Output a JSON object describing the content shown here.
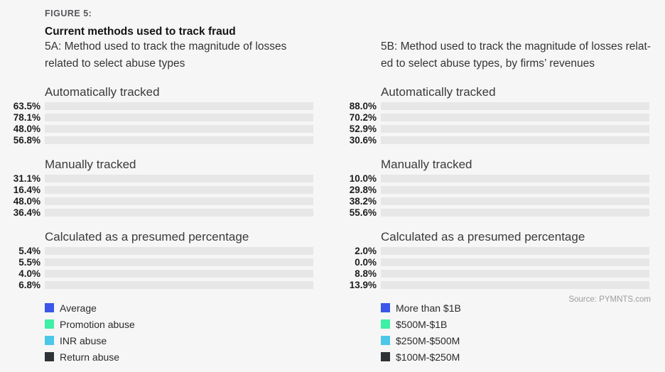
{
  "header": {
    "figure_label": "FIGURE 5:",
    "title": "Current methods used to track fraud",
    "subtitle_a_lines": [
      "5A: Method used to track the magnitude of losses",
      "related to select abuse types"
    ],
    "subtitle_b_lines": [
      "5B: Method used to track the magnitude of losses relat-",
      "ed to select abuse types, by firms’ revenues"
    ]
  },
  "source_note": "Source: PYMNTS.com",
  "colors": {
    "background": "#f6f6f6",
    "track": "#e7e7e7",
    "series": [
      "#3b56e8",
      "#3fefa4",
      "#4cc7e7",
      "#5a6069"
    ],
    "legend_swatches": [
      "#3b56e8",
      "#3fefa4",
      "#4cc7e7",
      "#2f3338"
    ],
    "value_label": "#1d1d1d",
    "group_title": "#3a3a3a"
  },
  "value_suffix": "%",
  "chart_data": [
    {
      "type": "bar",
      "orientation": "horizontal",
      "title": "5A: Method used to track the magnitude of losses related to select abuse types",
      "categories": [
        "Automatically tracked",
        "Manually tracked",
        "Calculated as a presumed percentage"
      ],
      "series": [
        {
          "name": "Average",
          "values": [
            63.5,
            31.1,
            5.4
          ]
        },
        {
          "name": "Promotion abuse",
          "values": [
            78.1,
            16.4,
            5.5
          ]
        },
        {
          "name": "INR abuse",
          "values": [
            48.0,
            48.0,
            4.0
          ]
        },
        {
          "name": "Return abuse",
          "values": [
            56.8,
            36.4,
            6.8
          ]
        }
      ],
      "xlim": [
        0,
        100
      ],
      "unit": "%",
      "value_labels": "left_of_bar",
      "legend_position": "bottom-left",
      "grid": false
    },
    {
      "type": "bar",
      "orientation": "horizontal",
      "title": "5B: Method used to track the magnitude of losses related to select abuse types, by firms’ revenues",
      "categories": [
        "Automatically tracked",
        "Manually tracked",
        "Calculated as a presumed percentage"
      ],
      "series": [
        {
          "name": "More than $1B",
          "values": [
            88.0,
            10.0,
            2.0
          ]
        },
        {
          "name": "$500M-$1B",
          "values": [
            70.2,
            29.8,
            0.0
          ]
        },
        {
          "name": "$250M-$500M",
          "values": [
            52.9,
            38.2,
            8.8
          ]
        },
        {
          "name": "$100M-$250M",
          "values": [
            30.6,
            55.6,
            13.9
          ]
        }
      ],
      "xlim": [
        0,
        100
      ],
      "unit": "%",
      "value_labels": "left_of_bar",
      "legend_position": "bottom-left",
      "grid": false
    }
  ]
}
